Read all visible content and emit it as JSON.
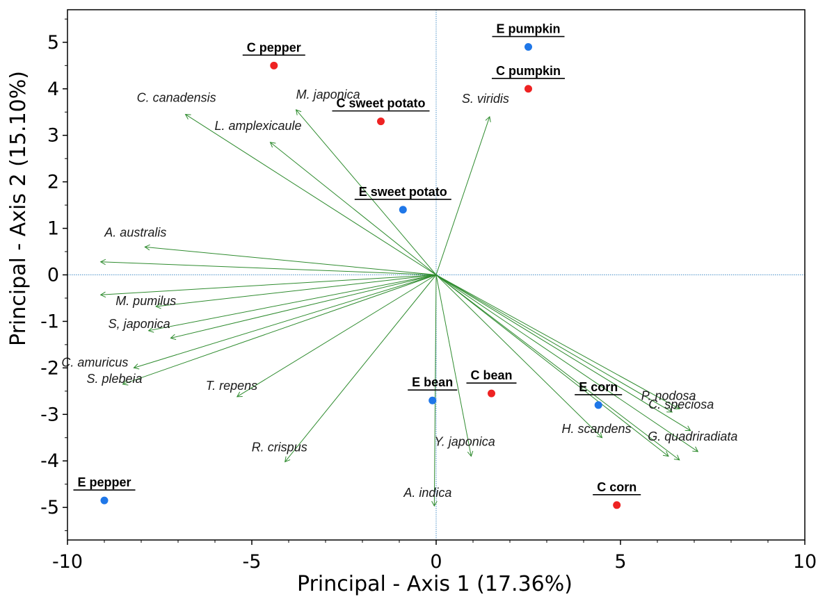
{
  "chart_data": {
    "type": "scatter",
    "subtype": "pca-biplot",
    "xlabel": "Principal - Axis 1 (17.36%)",
    "ylabel": "Principal - Axis 2 (15.10%)",
    "xlim": [
      -10,
      10
    ],
    "ylim": [
      -5.7,
      5.7
    ],
    "xticks": [
      "-10",
      "-5",
      "0",
      "5",
      "10"
    ],
    "yticks": [
      "5",
      "4",
      "3",
      "2",
      "1",
      "0",
      "-1",
      "-2",
      "-3",
      "-4",
      "-5"
    ],
    "reference_lines": [
      "x = 0",
      "y = 0"
    ],
    "colors": {
      "C": "#ee2222",
      "E": "#1f77e8",
      "vector": "#2e8b2e",
      "refline": "#4a90c8"
    },
    "sites": [
      {
        "name": "C pepper",
        "group": "C",
        "x": -4.4,
        "y": 4.5
      },
      {
        "name": "E pumpkin",
        "group": "E",
        "x": 2.5,
        "y": 4.9
      },
      {
        "name": "C pumpkin",
        "group": "C",
        "x": 2.5,
        "y": 4.0
      },
      {
        "name": "C sweet potato",
        "group": "C",
        "x": -1.5,
        "y": 3.3
      },
      {
        "name": "E sweet potato",
        "group": "E",
        "x": -0.9,
        "y": 1.4
      },
      {
        "name": "E bean",
        "group": "E",
        "x": -0.1,
        "y": -2.7
      },
      {
        "name": "C bean",
        "group": "C",
        "x": 1.5,
        "y": -2.55
      },
      {
        "name": "E corn",
        "group": "E",
        "x": 4.4,
        "y": -2.8
      },
      {
        "name": "C corn",
        "group": "C",
        "x": 4.9,
        "y": -4.95
      },
      {
        "name": "E pepper",
        "group": "E",
        "x": -9.0,
        "y": -4.85
      }
    ],
    "species": [
      {
        "name": "C. canadensis",
        "x": -6.8,
        "y": 3.45
      },
      {
        "name": "M. japonica",
        "x": -3.8,
        "y": 3.55
      },
      {
        "name": "L. amplexicaule",
        "x": -4.5,
        "y": 2.85
      },
      {
        "name": "S. viridis",
        "x": 1.45,
        "y": 3.4
      },
      {
        "name": "A. australis",
        "x": -7.9,
        "y": 0.6
      },
      {
        "name": "",
        "x": -9.1,
        "y": 0.28
      },
      {
        "name": "",
        "x": -9.1,
        "y": -0.43
      },
      {
        "name": "M. pumilus",
        "x": -7.6,
        "y": -0.68
      },
      {
        "name": "S, japonica",
        "x": -7.8,
        "y": -1.2
      },
      {
        "name": "",
        "x": -7.2,
        "y": -1.36
      },
      {
        "name": "C. amuricus",
        "x": -8.2,
        "y": -2.0
      },
      {
        "name": "S. plebeia",
        "x": -8.5,
        "y": -2.35
      },
      {
        "name": "T. repens",
        "x": -5.4,
        "y": -2.62
      },
      {
        "name": "R. crispus",
        "x": -4.1,
        "y": -4.02
      },
      {
        "name": "Y. japonica",
        "x": 0.95,
        "y": -3.9
      },
      {
        "name": "A. indica",
        "x": -0.05,
        "y": -4.97
      },
      {
        "name": "H. scandens",
        "x": 4.5,
        "y": -3.5
      },
      {
        "name": "P. nodosa",
        "x": 6.6,
        "y": -2.88
      },
      {
        "name": "C. speciosa",
        "x": 6.4,
        "y": -2.95
      },
      {
        "name": "",
        "x": 6.9,
        "y": -3.35
      },
      {
        "name": "G. quadriradiata",
        "x": 7.1,
        "y": -3.8
      },
      {
        "name": "",
        "x": 6.6,
        "y": -3.98
      },
      {
        "name": "",
        "x": 6.3,
        "y": -3.9
      }
    ]
  }
}
